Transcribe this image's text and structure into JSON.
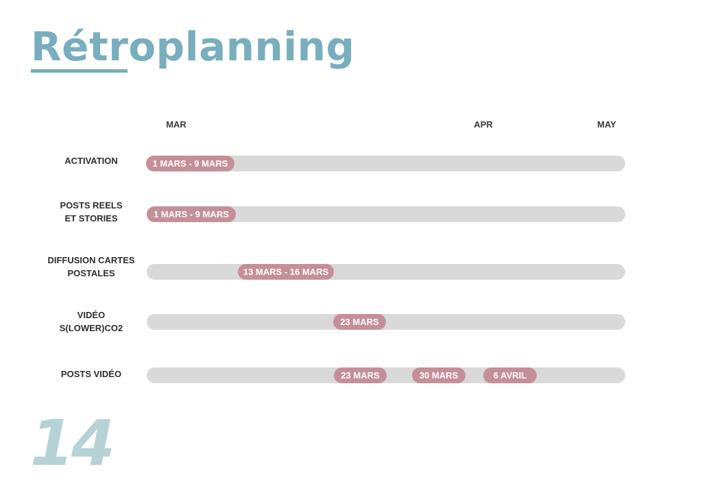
{
  "title": "Rétroplanning",
  "page_number": "14",
  "months": [
    "MAR",
    "APR",
    "MAY"
  ],
  "rows": [
    {
      "label": "ACTIVATION",
      "pills": [
        "1 MARS - 9 MARS"
      ]
    },
    {
      "label": "POSTS REELS\nET STORIES",
      "pills": [
        "1 MARS - 9 MARS"
      ]
    },
    {
      "label": "DIFFUSION CARTES\nPOSTALES",
      "pills": [
        "13 MARS - 16 MARS"
      ]
    },
    {
      "label": "VIDÉO\nS(LOWER)CO2",
      "pills": [
        "23 MARS"
      ]
    },
    {
      "label": "POSTS VIDÉO",
      "pills": [
        "23 MARS",
        "30 MARS",
        "6 AVRIL"
      ]
    }
  ],
  "colors": {
    "title": "#78aebd",
    "track": "#d9d9d9",
    "pill": "#c58f98",
    "page_number": "#b7d2d6"
  }
}
